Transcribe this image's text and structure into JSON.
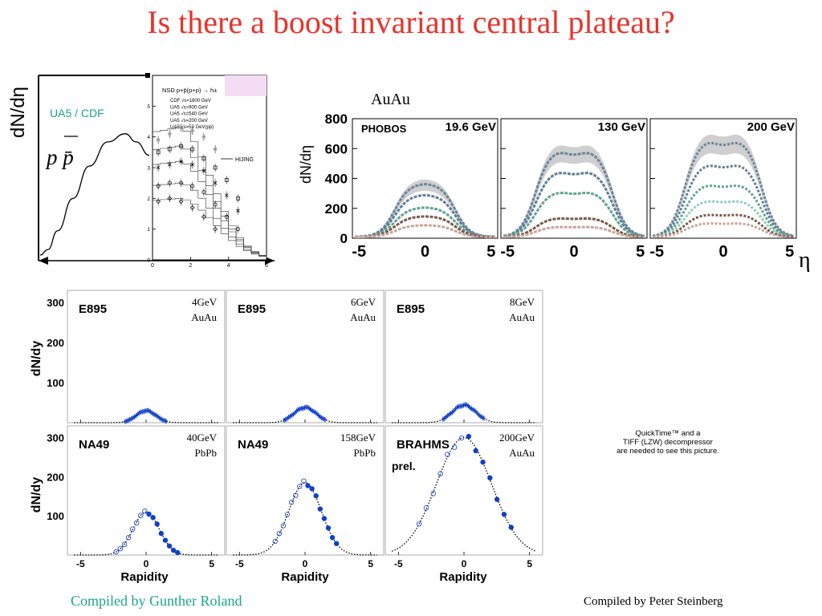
{
  "slide": {
    "title": "Is there a boost invariant central plateau?",
    "credit_left": "Compiled by Gunther Roland",
    "credit_right": "Compiled by Peter Steinberg",
    "quicktime_notice": [
      "QuickTime™ and a",
      "TIFF (LZW) decompressor",
      "are needed to see this picture."
    ],
    "colors": {
      "title": "#e8332a",
      "credit_left": "#1aa58c",
      "ua5_label": "#1aa58c",
      "rapidity_points": "#1040c8"
    }
  },
  "chart_data": [
    {
      "id": "pp-schematic",
      "type": "line",
      "title": "",
      "ylabel": "dN/dη",
      "labels": {
        "experiment": "UA5 / CDF",
        "system": "p p̄"
      },
      "x": [
        0,
        0.07,
        0.16,
        0.3,
        0.45,
        0.62,
        0.78,
        0.88,
        1.0
      ],
      "y": [
        0,
        0.04,
        0.18,
        0.42,
        0.66,
        0.84,
        0.9,
        0.84,
        0.74
      ]
    },
    {
      "id": "ua5-inset",
      "type": "scatter",
      "title": "NSD p+p̄(p+p) → h±",
      "xlabel": "η",
      "xlim": [
        0,
        6
      ],
      "ylim": [
        0,
        6
      ],
      "xticks": [
        0,
        2,
        4,
        6
      ],
      "yticks": [
        0,
        1,
        2,
        3,
        4,
        5,
        6
      ],
      "legend": [
        "CDF √s=1800 GeV",
        "UA5 √s=900 GeV",
        "UA5 √s=540 GeV",
        "UA5 √s=200 GeV",
        "UA5 √s=53 GeV(pp)"
      ],
      "model_label": "HIJING",
      "series": [
        {
          "name": "CDF √s=1800 GeV",
          "marker": "asterisk",
          "x": [
            0.3,
            0.9,
            1.5,
            2.1,
            2.7,
            3.3
          ],
          "values": [
            3.9,
            4.1,
            4.3,
            4.2,
            4.0,
            3.6
          ]
        },
        {
          "name": "UA5 √s=900 GeV",
          "marker": "square",
          "x": [
            0.3,
            0.9,
            1.5,
            2.1,
            2.7,
            3.3,
            3.9,
            4.5
          ],
          "values": [
            3.5,
            3.6,
            3.7,
            3.6,
            3.3,
            3.0,
            2.6,
            2.0
          ]
        },
        {
          "name": "UA5 √s=540 GeV",
          "marker": "cross",
          "x": [
            0.3,
            0.9,
            1.5,
            2.1,
            2.7,
            3.3,
            3.9,
            4.5
          ],
          "values": [
            3.0,
            3.1,
            3.2,
            3.1,
            2.9,
            2.5,
            2.1,
            1.6
          ]
        },
        {
          "name": "UA5 √s=200 GeV",
          "marker": "circle",
          "x": [
            0.3,
            0.9,
            1.5,
            2.1,
            2.7,
            3.3,
            3.9,
            4.5
          ],
          "values": [
            2.4,
            2.5,
            2.5,
            2.4,
            2.2,
            1.8,
            1.4,
            1.0
          ]
        },
        {
          "name": "UA5 √s=53 GeV(pp)",
          "marker": "diamond",
          "x": [
            0.3,
            0.9,
            1.5,
            2.1,
            2.7,
            3.3
          ],
          "values": [
            1.9,
            2.0,
            1.9,
            1.7,
            1.4,
            1.0
          ]
        }
      ]
    },
    {
      "id": "phobos",
      "type": "area",
      "system": "AuAu",
      "ylabel": "dN/dη",
      "xlabel": "η",
      "experiment": "PHOBOS",
      "ylim": [
        0,
        800
      ],
      "xlim": [
        -5.5,
        5.5
      ],
      "yticks": [
        0,
        200,
        400,
        600,
        800
      ],
      "xticks": [
        -5,
        0,
        5
      ],
      "panels": [
        {
          "energy": "19.6 GeV",
          "centrality_heights": [
            360,
            285,
            200,
            140,
            80
          ]
        },
        {
          "energy": "130 GeV",
          "centrality_heights": [
            590,
            450,
            310,
            130,
            70
          ]
        },
        {
          "energy": "200 GeV",
          "centrality_heights": [
            660,
            500,
            360,
            250,
            155,
            95
          ]
        }
      ],
      "series_colors": [
        "#6b859e",
        "#5f7f98",
        "#64a48f",
        "#8cd0b8",
        "#7a5a4a",
        "#c8a598"
      ]
    },
    {
      "id": "rapidity-grid",
      "type": "scatter",
      "ylabel": "dN/dy",
      "xlabel": "Rapidity",
      "ylim": [
        0,
        330
      ],
      "xlim": [
        -6,
        6
      ],
      "yticks": [
        100,
        200,
        300
      ],
      "xticks": [
        -5,
        0,
        5
      ],
      "panels": [
        {
          "experiment": "E895",
          "energy": "4GeV",
          "system": "AuAu",
          "peak": 30,
          "width": 0.75
        },
        {
          "experiment": "E895",
          "energy": "6GeV",
          "system": "AuAu",
          "peak": 38,
          "width": 0.85
        },
        {
          "experiment": "E895",
          "energy": "8GeV",
          "system": "AuAu",
          "peak": 44,
          "width": 0.9
        },
        {
          "experiment": "NA49",
          "energy": "40GeV",
          "system": "PbPb",
          "peak": 110,
          "width": 1.0
        },
        {
          "experiment": "NA49",
          "energy": "158GeV",
          "system": "PbPb",
          "peak": 185,
          "width": 1.25
        },
        {
          "experiment": "BRAHMS",
          "energy": "200GeV",
          "system": "AuAu",
          "peak": 300,
          "width": 2.1,
          "note": "prel."
        }
      ]
    }
  ]
}
